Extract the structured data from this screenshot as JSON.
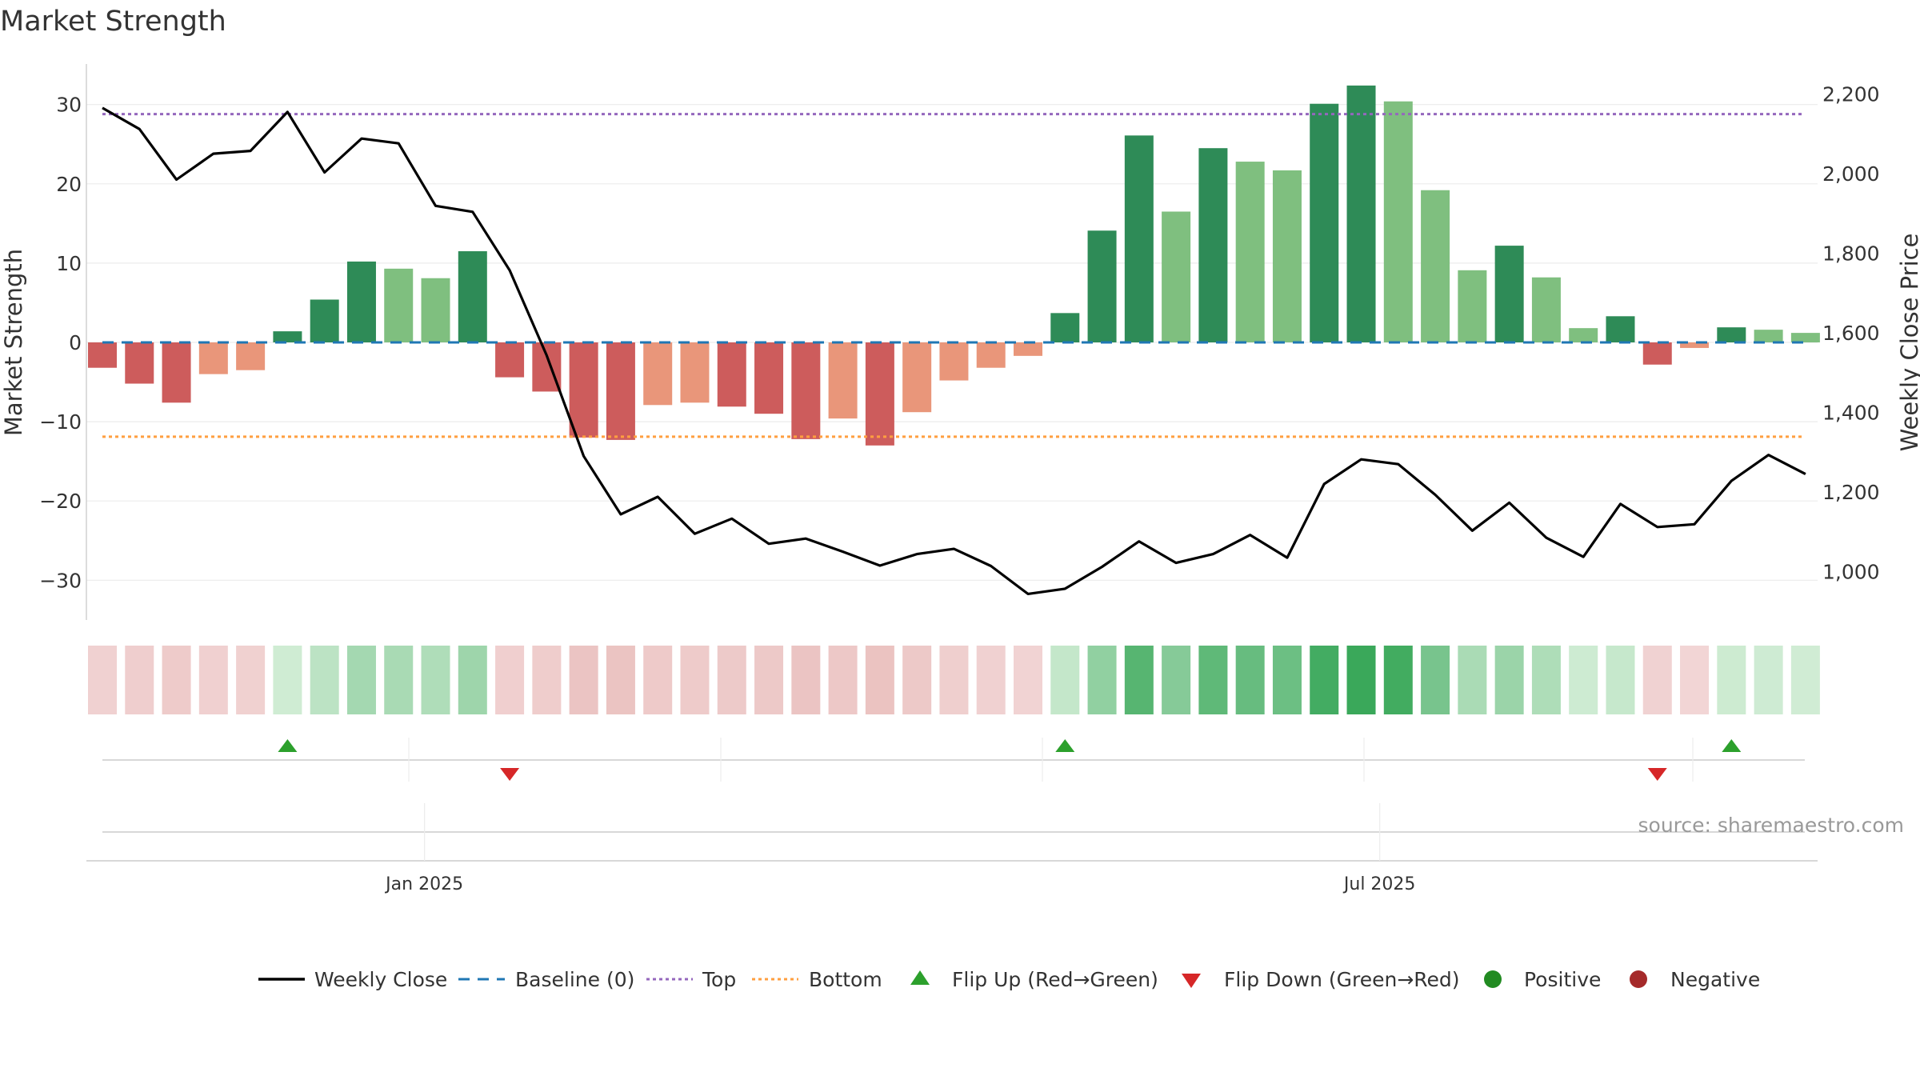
{
  "chart_data": {
    "type": "bar",
    "title": "Market Strength",
    "ylabel_left": "Market Strength",
    "ylabel_right": "Weekly Close Price",
    "ylim_left": [
      -35,
      35
    ],
    "ylim_right": [
      900,
      2260
    ],
    "left_ticks": [
      30,
      20,
      10,
      0,
      -10,
      -20,
      -30
    ],
    "left_tick_labels": [
      "30",
      "20",
      "10",
      "0",
      "−10",
      "−20",
      "−30"
    ],
    "right_ticks": [
      2200,
      2000,
      1800,
      1600,
      1400,
      1200,
      1000
    ],
    "right_tick_labels": [
      "2,200",
      "2,000",
      "1,800",
      "1,600",
      "1,400",
      "1,200",
      "1,000"
    ],
    "x_tick_labels": [
      {
        "label": "Jan 2025",
        "week_index": 8.7
      },
      {
        "label": "Jul 2025",
        "week_index": 34.5
      }
    ],
    "values": [
      -3.2,
      -5.2,
      -7.6,
      -4.0,
      -3.5,
      1.4,
      5.4,
      10.2,
      9.3,
      8.1,
      11.5,
      -4.4,
      -6.2,
      -12.0,
      -12.3,
      -7.9,
      -7.6,
      -8.1,
      -9.0,
      -12.2,
      -9.6,
      -13.0,
      -8.8,
      -4.8,
      -3.2,
      -1.7,
      3.7,
      14.1,
      26.1,
      16.5,
      24.5,
      22.8,
      21.7,
      30.1,
      32.4,
      30.4,
      19.2,
      9.1,
      12.2,
      8.2,
      1.8,
      3.3,
      -2.8,
      -0.7,
      1.9,
      1.6,
      1.2
    ],
    "weekly_close": [
      2165,
      2112,
      1985,
      2050,
      2057,
      2155,
      2003,
      2088,
      2076,
      1919,
      1904,
      1757,
      1543,
      1290,
      1144,
      1188,
      1095,
      1133,
      1070,
      1083,
      1050,
      1015,
      1044,
      1057,
      1014,
      944,
      957,
      1012,
      1076,
      1022,
      1044,
      1092,
      1035,
      1220,
      1282,
      1270,
      1193,
      1103,
      1173,
      1085,
      1037,
      1170,
      1112,
      1119,
      1228,
      1293,
      1245
    ],
    "baseline": 0,
    "top": 28.8,
    "bottom": -11.9,
    "flip_up_weeks": [
      5,
      26,
      44
    ],
    "flip_down_weeks": [
      11,
      42
    ],
    "colors": {
      "positive_strong": "#2e8b57",
      "positive_weak": "#7fbf7f",
      "negative_strong": "#cd5c5c",
      "negative_weak": "#e9967a",
      "line": "#000000",
      "baseline": "#1f77b4",
      "top": "#9467bd",
      "bottom": "#ff9f40",
      "flip_up": "#2ca02c",
      "flip_down": "#d62728",
      "positive_dot": "#228b22",
      "negative_dot": "#a52a2a"
    },
    "legend": {
      "weekly_close": "Weekly Close",
      "baseline": "Baseline (0)",
      "top": "Top",
      "bottom": "Bottom",
      "flip_up": "Flip Up (Red→Green)",
      "flip_down": "Flip Down (Green→Red)",
      "positive": "Positive",
      "negative": "Negative"
    }
  },
  "source": "source: sharemaestro.com"
}
